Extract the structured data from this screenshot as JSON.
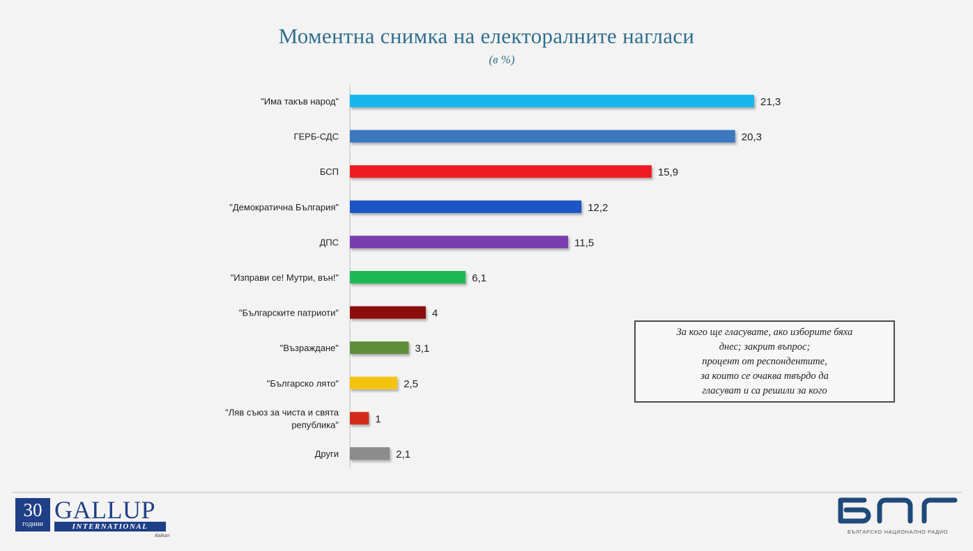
{
  "chart_data": {
    "type": "bar",
    "orientation": "horizontal",
    "title": "Моментна снимка на електоралните нагласи",
    "subtitle": "(в %)",
    "categories": [
      "\"Има такъв народ\"",
      "ГЕРБ-СДС",
      "БСП",
      "\"Демократична България\"",
      "ДПС",
      "\"Изправи се! Мутри, вън!\"",
      "\"Българските патриоти\"",
      "\"Възраждане\"",
      "\"Българско лято\"",
      "\"Ляв съюз за чиста и свята република\"",
      "Други"
    ],
    "category_lines": [
      [
        "\"Има такъв народ\""
      ],
      [
        "ГЕРБ-СДС"
      ],
      [
        "БСП"
      ],
      [
        "\"Демократична България\""
      ],
      [
        "ДПС"
      ],
      [
        "\"Изправи се! Мутри, вън!\""
      ],
      [
        "\"Българските патриоти\""
      ],
      [
        "\"Възраждане\""
      ],
      [
        "\"Българско лято\""
      ],
      [
        "\"Ляв съюз за чиста и свята",
        "република\""
      ],
      [
        "Други"
      ]
    ],
    "values": [
      21.3,
      20.3,
      15.9,
      12.2,
      11.5,
      6.1,
      4,
      3.1,
      2.5,
      1,
      2.1
    ],
    "value_labels": [
      "21,3",
      "20,3",
      "15,9",
      "12,2",
      "11,5",
      "6,1",
      "4",
      "3,1",
      "2,5",
      "1",
      "2,1"
    ],
    "colors": [
      "#18b7ee",
      "#3b78bd",
      "#ee1c24",
      "#1c55c4",
      "#7a3cb0",
      "#1db954",
      "#8b0d10",
      "#5e8c3b",
      "#f2c40f",
      "#d22a1b",
      "#8c8c8c"
    ],
    "xlim": [
      0,
      21.3
    ],
    "grid": false,
    "legend": "none"
  },
  "note": {
    "lines": [
      "За кого ще гласувате, ако изборите бяха",
      "днес; закрит въпрос;",
      "процент от респондентите,",
      "за които се очаква твърдо да",
      "гласуват и са решили за кого"
    ]
  },
  "logos": {
    "gallup_number": "30",
    "gallup_years": "години",
    "gallup_name": "GALLUP",
    "gallup_international": "INTERNATIONAL",
    "gallup_country": "Balkan",
    "bnr_tagline": "БЪЛГАРСКО НАЦИОНАЛНО РАДИО"
  }
}
